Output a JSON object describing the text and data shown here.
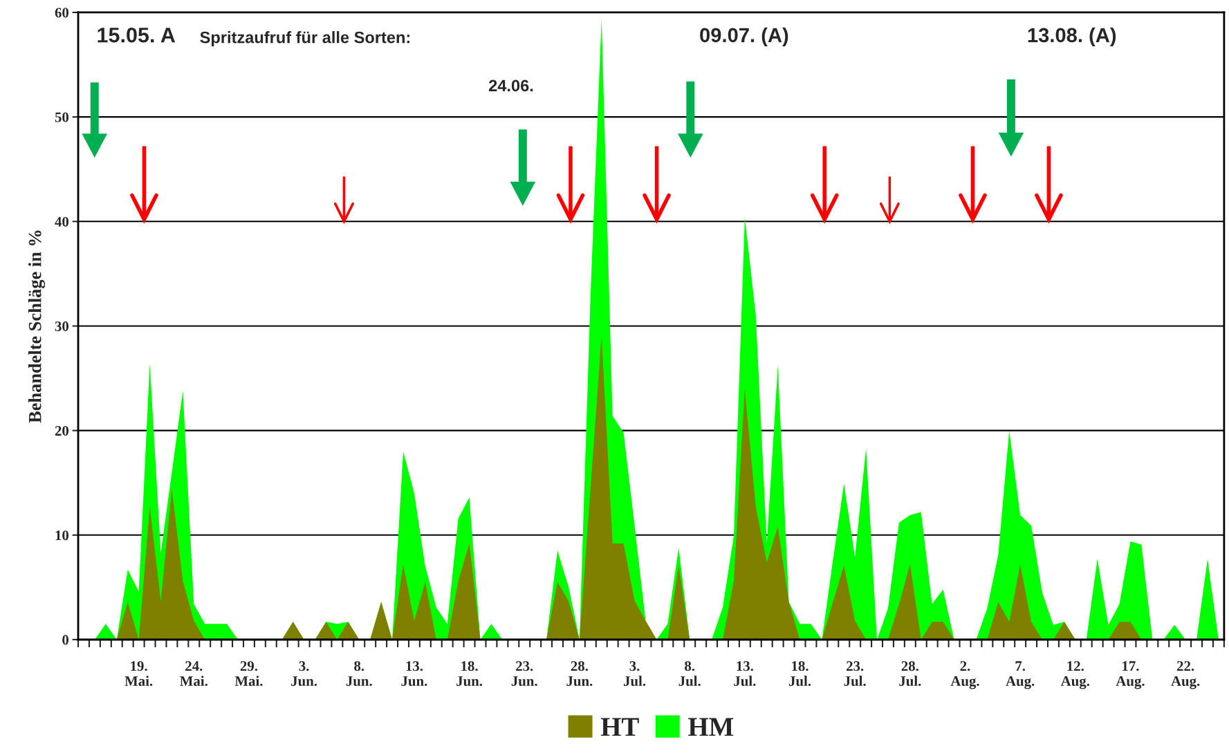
{
  "chart_data": {
    "type": "area",
    "categories": [
      null,
      null,
      null,
      null,
      null,
      "19.\nMai.",
      null,
      null,
      null,
      null,
      "24.\nMai.",
      null,
      null,
      null,
      null,
      "29.\nMai.",
      null,
      null,
      null,
      null,
      "3.\nJun.",
      null,
      null,
      null,
      null,
      "8.\nJun.",
      null,
      null,
      null,
      null,
      "13.\nJun.",
      null,
      null,
      null,
      null,
      "18.\nJun.",
      null,
      null,
      null,
      null,
      "23.\nJun.",
      null,
      null,
      null,
      null,
      "28.\nJun.",
      null,
      null,
      null,
      null,
      "3.\nJul.",
      null,
      null,
      null,
      null,
      "8.\nJul.",
      null,
      null,
      null,
      null,
      "13.\nJul.",
      null,
      null,
      null,
      null,
      "18.\nJul.",
      null,
      null,
      null,
      null,
      "23.\nJul.",
      null,
      null,
      null,
      null,
      "28.\nJul.",
      null,
      null,
      null,
      null,
      "2.\nAug.",
      null,
      null,
      null,
      null,
      "7.\nAug.",
      null,
      null,
      null,
      null,
      "12.\nAug.",
      null,
      null,
      null,
      null,
      "17.\nAug.",
      null,
      null,
      null,
      null,
      "22.\nAug.",
      null,
      null,
      null
    ],
    "series": [
      {
        "name": "HT",
        "color": "#808000",
        "values": [
          0,
          0,
          0,
          0,
          3.6,
          0,
          12.7,
          3.7,
          14.4,
          5.6,
          1.8,
          0,
          0,
          0,
          0,
          0,
          0,
          0,
          0,
          1.7,
          0,
          0,
          1.7,
          0,
          1.7,
          0,
          0,
          3.6,
          0,
          7.2,
          1.8,
          5.5,
          0,
          0,
          5.6,
          9.2,
          0,
          0,
          0,
          0,
          0,
          0,
          0,
          5.5,
          3.7,
          0,
          14.5,
          29.1,
          9.2,
          9.2,
          3.7,
          1.8,
          0,
          0,
          7.1,
          0,
          0,
          0,
          0,
          5.6,
          24,
          12.7,
          7.4,
          10.8,
          3.6,
          0,
          0,
          0,
          3.6,
          7.1,
          1.8,
          0,
          0,
          0,
          3.4,
          7.2,
          0,
          1.7,
          1.7,
          0,
          0,
          0,
          0,
          3.6,
          1.7,
          7.2,
          1.7,
          0,
          0,
          1.7,
          0,
          0,
          0,
          0,
          1.7,
          1.7,
          0,
          0,
          0,
          0,
          0,
          0,
          0,
          0
        ]
      },
      {
        "name": "HM",
        "color": "#00ff00",
        "values": [
          0,
          0,
          1.5,
          0,
          6.7,
          4.6,
          26.4,
          8.3,
          16,
          23.8,
          3.4,
          1.5,
          1.5,
          1.5,
          0,
          0,
          0,
          0,
          0,
          1.7,
          0,
          0,
          1.7,
          1.5,
          1.7,
          0,
          0,
          3.6,
          0,
          18,
          14,
          7,
          3.1,
          1.5,
          11.6,
          13.6,
          0,
          1.5,
          0,
          0,
          0,
          0,
          0,
          8.5,
          5.1,
          0,
          33,
          59.4,
          21.4,
          19.8,
          10.9,
          1.8,
          0,
          1.5,
          8.8,
          0,
          0,
          0,
          3.1,
          9.9,
          40.4,
          31,
          9.2,
          26.2,
          3.6,
          1.5,
          1.5,
          0,
          7.6,
          14.9,
          7.9,
          18.3,
          0,
          3,
          11.2,
          11.9,
          12.2,
          3.4,
          4.8,
          0,
          0,
          0,
          3,
          8.1,
          20,
          11.9,
          10.9,
          4.5,
          1.4,
          1.7,
          0,
          0,
          7.7,
          1.4,
          3.4,
          9.4,
          9.1,
          0,
          0,
          1.4,
          0,
          0,
          7.7,
          0
        ]
      }
    ],
    "ylabel": "Behandelte Schläge in %",
    "ylim": [
      0,
      60
    ],
    "yticks": [
      0,
      10,
      20,
      30,
      40,
      50,
      60
    ],
    "grid": "y",
    "legend": "bottom",
    "annotations": [
      "15.05. A",
      "Spritzaufruf für alle Sorten:",
      "24.06.",
      "09.07. (A)",
      "13.08. (A)"
    ]
  }
}
